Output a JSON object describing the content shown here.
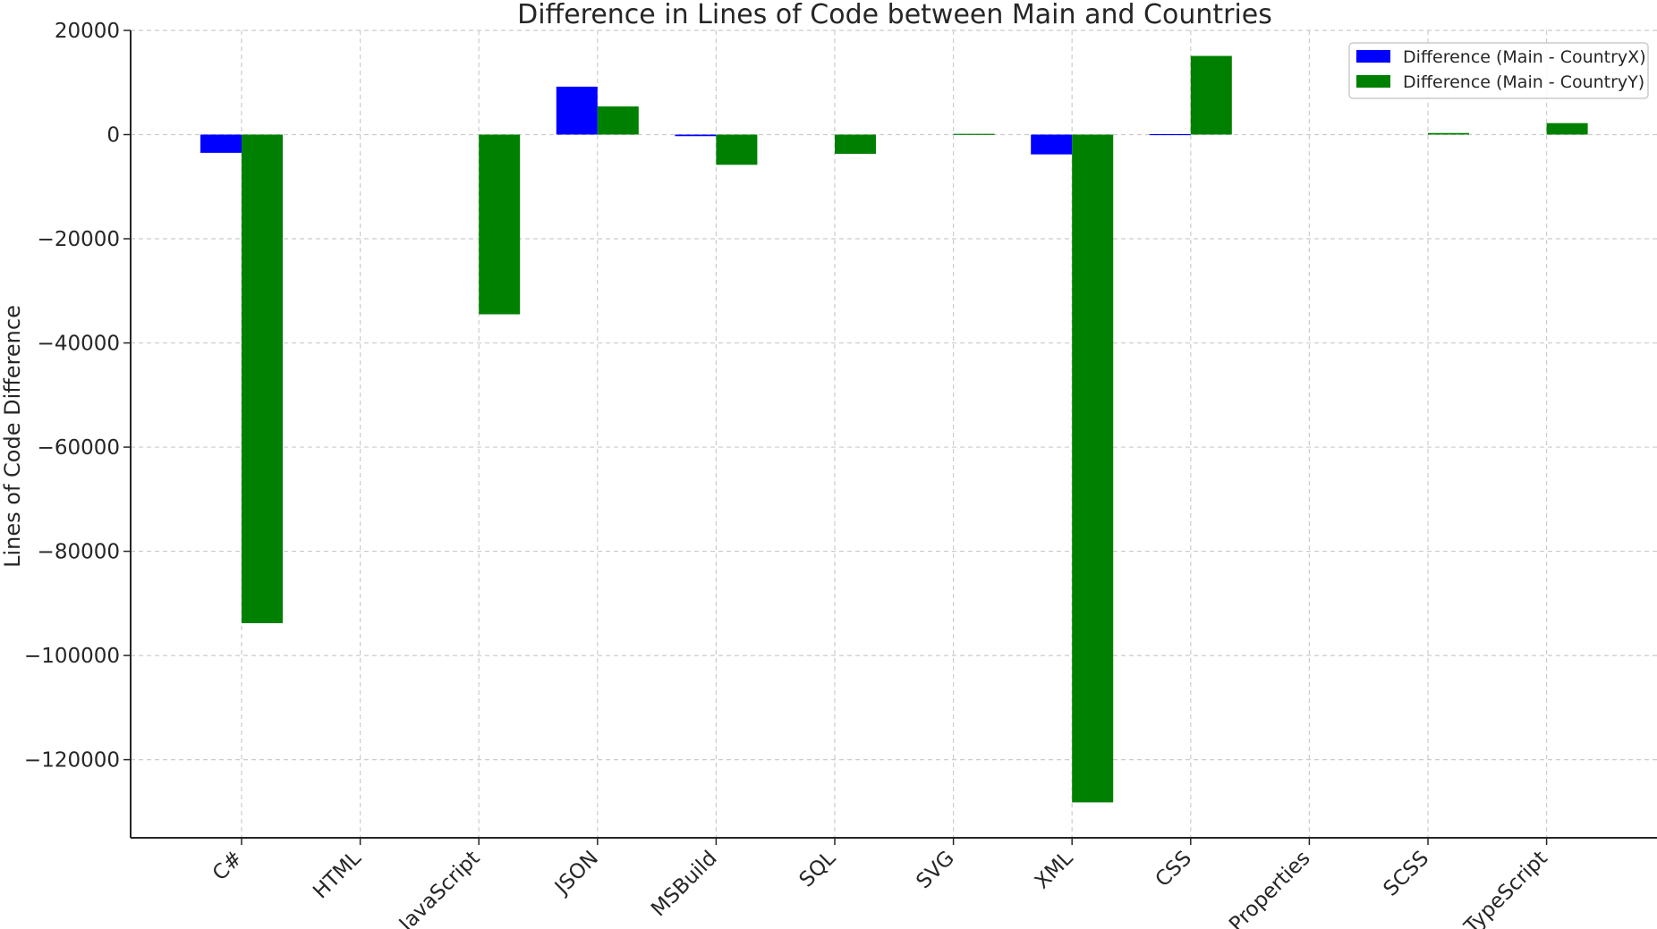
{
  "chart_data": {
    "type": "bar",
    "title": "Difference in Lines of Code between Main and Countries",
    "xlabel": "",
    "ylabel": "Lines of Code Difference",
    "categories": [
      "C#",
      "HTML",
      "JavaScript",
      "JSON",
      "MSBuild",
      "SQL",
      "SVG",
      "XML",
      "CSS",
      "Properties",
      "SCSS",
      "TypeScript"
    ],
    "series": [
      {
        "name": "Difference (Main - CountryX)",
        "color": "#0000ff",
        "values": [
          -3500,
          0,
          0,
          9200,
          -300,
          0,
          0,
          -3800,
          100,
          0,
          0,
          0
        ]
      },
      {
        "name": "Difference (Main - CountryY)",
        "color": "#008000",
        "values": [
          -93800,
          0,
          -34500,
          5400,
          -5800,
          -3700,
          150,
          -128200,
          15100,
          0,
          300,
          2200
        ]
      }
    ],
    "ylim": [
      -135000,
      20000
    ],
    "yticks": [
      20000,
      0,
      -20000,
      -40000,
      -60000,
      -80000,
      -100000,
      -120000
    ],
    "ytick_labels": [
      "20000",
      "0",
      "−20000",
      "−40000",
      "−60000",
      "−80000",
      "−100000",
      "−120000"
    ],
    "grid": true,
    "legend_position": "top-right"
  }
}
